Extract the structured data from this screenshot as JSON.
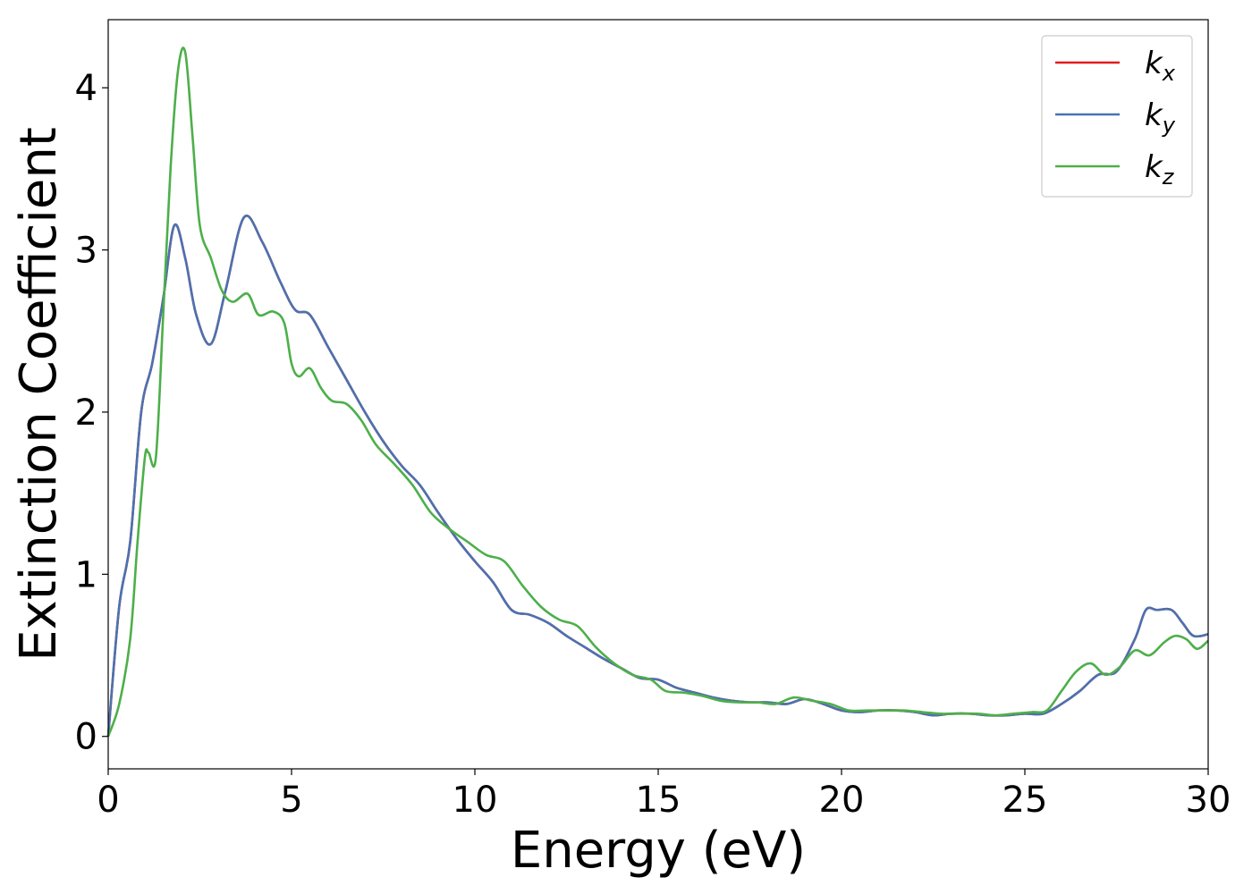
{
  "chart_data": {
    "type": "line",
    "xlabel": "Energy (eV)",
    "ylabel": "Extinction Coefficient",
    "xlim": [
      0,
      30
    ],
    "ylim": [
      -0.2,
      4.42
    ],
    "xticks": [
      0,
      5,
      10,
      15,
      20,
      25,
      30
    ],
    "xtick_labels": [
      "0",
      "5",
      "10",
      "15",
      "20",
      "25",
      "30"
    ],
    "yticks": [
      0,
      1,
      2,
      3,
      4
    ],
    "ytick_labels": [
      "0",
      "1",
      "2",
      "3",
      "4"
    ],
    "grid": false,
    "legend_position": "top-right",
    "series": [
      {
        "name": "k",
        "subscript": "x",
        "color": "#e41a1c",
        "x": [
          0,
          0.3,
          0.6,
          0.9,
          1.2,
          1.5,
          1.8,
          2.1,
          2.4,
          2.8,
          3.2,
          3.7,
          4.2,
          4.7,
          5.1,
          5.5,
          6,
          6.5,
          7,
          7.5,
          8,
          8.5,
          9,
          9.5,
          10,
          10.5,
          11,
          11.5,
          12,
          12.5,
          13,
          13.5,
          14,
          14.5,
          15,
          15.5,
          16,
          16.5,
          17,
          17.5,
          18,
          18.5,
          19,
          19.5,
          20,
          20.5,
          21,
          21.5,
          22,
          22.5,
          23,
          23.5,
          24,
          24.5,
          25,
          25.5,
          26,
          26.5,
          27,
          27.5,
          28,
          28.3,
          28.6,
          29,
          29.3,
          29.6,
          30
        ],
        "values": [
          0,
          0.8,
          1.2,
          2.0,
          2.3,
          2.7,
          3.15,
          2.95,
          2.6,
          2.42,
          2.75,
          3.2,
          3.05,
          2.8,
          2.63,
          2.6,
          2.4,
          2.2,
          2.0,
          1.82,
          1.67,
          1.55,
          1.38,
          1.22,
          1.08,
          0.95,
          0.78,
          0.75,
          0.7,
          0.62,
          0.55,
          0.48,
          0.42,
          0.36,
          0.35,
          0.3,
          0.27,
          0.24,
          0.22,
          0.21,
          0.21,
          0.2,
          0.23,
          0.2,
          0.16,
          0.15,
          0.16,
          0.16,
          0.15,
          0.13,
          0.14,
          0.14,
          0.13,
          0.13,
          0.14,
          0.14,
          0.2,
          0.28,
          0.38,
          0.4,
          0.6,
          0.78,
          0.78,
          0.78,
          0.7,
          0.62,
          0.63
        ]
      },
      {
        "name": "k",
        "subscript": "y",
        "color": "#4a72b0",
        "x": [
          0,
          0.3,
          0.6,
          0.9,
          1.2,
          1.5,
          1.8,
          2.1,
          2.4,
          2.8,
          3.2,
          3.7,
          4.2,
          4.7,
          5.1,
          5.5,
          6,
          6.5,
          7,
          7.5,
          8,
          8.5,
          9,
          9.5,
          10,
          10.5,
          11,
          11.5,
          12,
          12.5,
          13,
          13.5,
          14,
          14.5,
          15,
          15.5,
          16,
          16.5,
          17,
          17.5,
          18,
          18.5,
          19,
          19.5,
          20,
          20.5,
          21,
          21.5,
          22,
          22.5,
          23,
          23.5,
          24,
          24.5,
          25,
          25.5,
          26,
          26.5,
          27,
          27.5,
          28,
          28.3,
          28.6,
          29,
          29.3,
          29.6,
          30
        ],
        "values": [
          0,
          0.8,
          1.2,
          2.0,
          2.3,
          2.7,
          3.15,
          2.95,
          2.6,
          2.42,
          2.75,
          3.2,
          3.05,
          2.8,
          2.63,
          2.6,
          2.4,
          2.2,
          2.0,
          1.82,
          1.67,
          1.55,
          1.38,
          1.22,
          1.08,
          0.95,
          0.78,
          0.75,
          0.7,
          0.62,
          0.55,
          0.48,
          0.42,
          0.36,
          0.35,
          0.3,
          0.27,
          0.24,
          0.22,
          0.21,
          0.21,
          0.2,
          0.23,
          0.2,
          0.16,
          0.15,
          0.16,
          0.16,
          0.15,
          0.13,
          0.14,
          0.14,
          0.13,
          0.13,
          0.14,
          0.14,
          0.2,
          0.28,
          0.38,
          0.4,
          0.6,
          0.78,
          0.78,
          0.78,
          0.7,
          0.62,
          0.63
        ]
      },
      {
        "name": "k",
        "subscript": "z",
        "color": "#4daf4a",
        "x": [
          0,
          0.3,
          0.6,
          0.8,
          1.0,
          1.1,
          1.3,
          1.5,
          1.7,
          1.9,
          2.1,
          2.3,
          2.5,
          2.8,
          3.1,
          3.4,
          3.8,
          4.1,
          4.5,
          4.8,
          5.0,
          5.2,
          5.5,
          5.8,
          6.1,
          6.5,
          6.9,
          7.3,
          7.8,
          8.3,
          8.8,
          9.3,
          9.8,
          10.3,
          10.8,
          11.3,
          11.8,
          12.3,
          12.8,
          13.3,
          13.8,
          14.3,
          14.8,
          15.2,
          15.7,
          16.2,
          16.7,
          17.2,
          17.7,
          18.2,
          18.7,
          19.2,
          19.7,
          20.2,
          20.7,
          21.2,
          21.7,
          22.2,
          22.7,
          23.2,
          23.7,
          24.2,
          24.7,
          25.2,
          25.6,
          26.0,
          26.4,
          26.8,
          27.2,
          27.6,
          28.0,
          28.4,
          28.8,
          29.1,
          29.4,
          29.7,
          30
        ],
        "values": [
          0,
          0.2,
          0.6,
          1.2,
          1.72,
          1.75,
          1.72,
          2.6,
          3.5,
          4.1,
          4.22,
          3.7,
          3.15,
          2.95,
          2.75,
          2.68,
          2.73,
          2.6,
          2.62,
          2.55,
          2.3,
          2.22,
          2.27,
          2.15,
          2.07,
          2.05,
          1.95,
          1.8,
          1.68,
          1.55,
          1.38,
          1.28,
          1.2,
          1.12,
          1.08,
          0.93,
          0.8,
          0.72,
          0.68,
          0.55,
          0.45,
          0.38,
          0.35,
          0.28,
          0.27,
          0.25,
          0.22,
          0.21,
          0.21,
          0.2,
          0.24,
          0.22,
          0.2,
          0.16,
          0.16,
          0.16,
          0.16,
          0.15,
          0.14,
          0.14,
          0.14,
          0.13,
          0.14,
          0.15,
          0.16,
          0.28,
          0.4,
          0.45,
          0.38,
          0.43,
          0.53,
          0.5,
          0.58,
          0.62,
          0.6,
          0.54,
          0.59
        ]
      }
    ]
  }
}
